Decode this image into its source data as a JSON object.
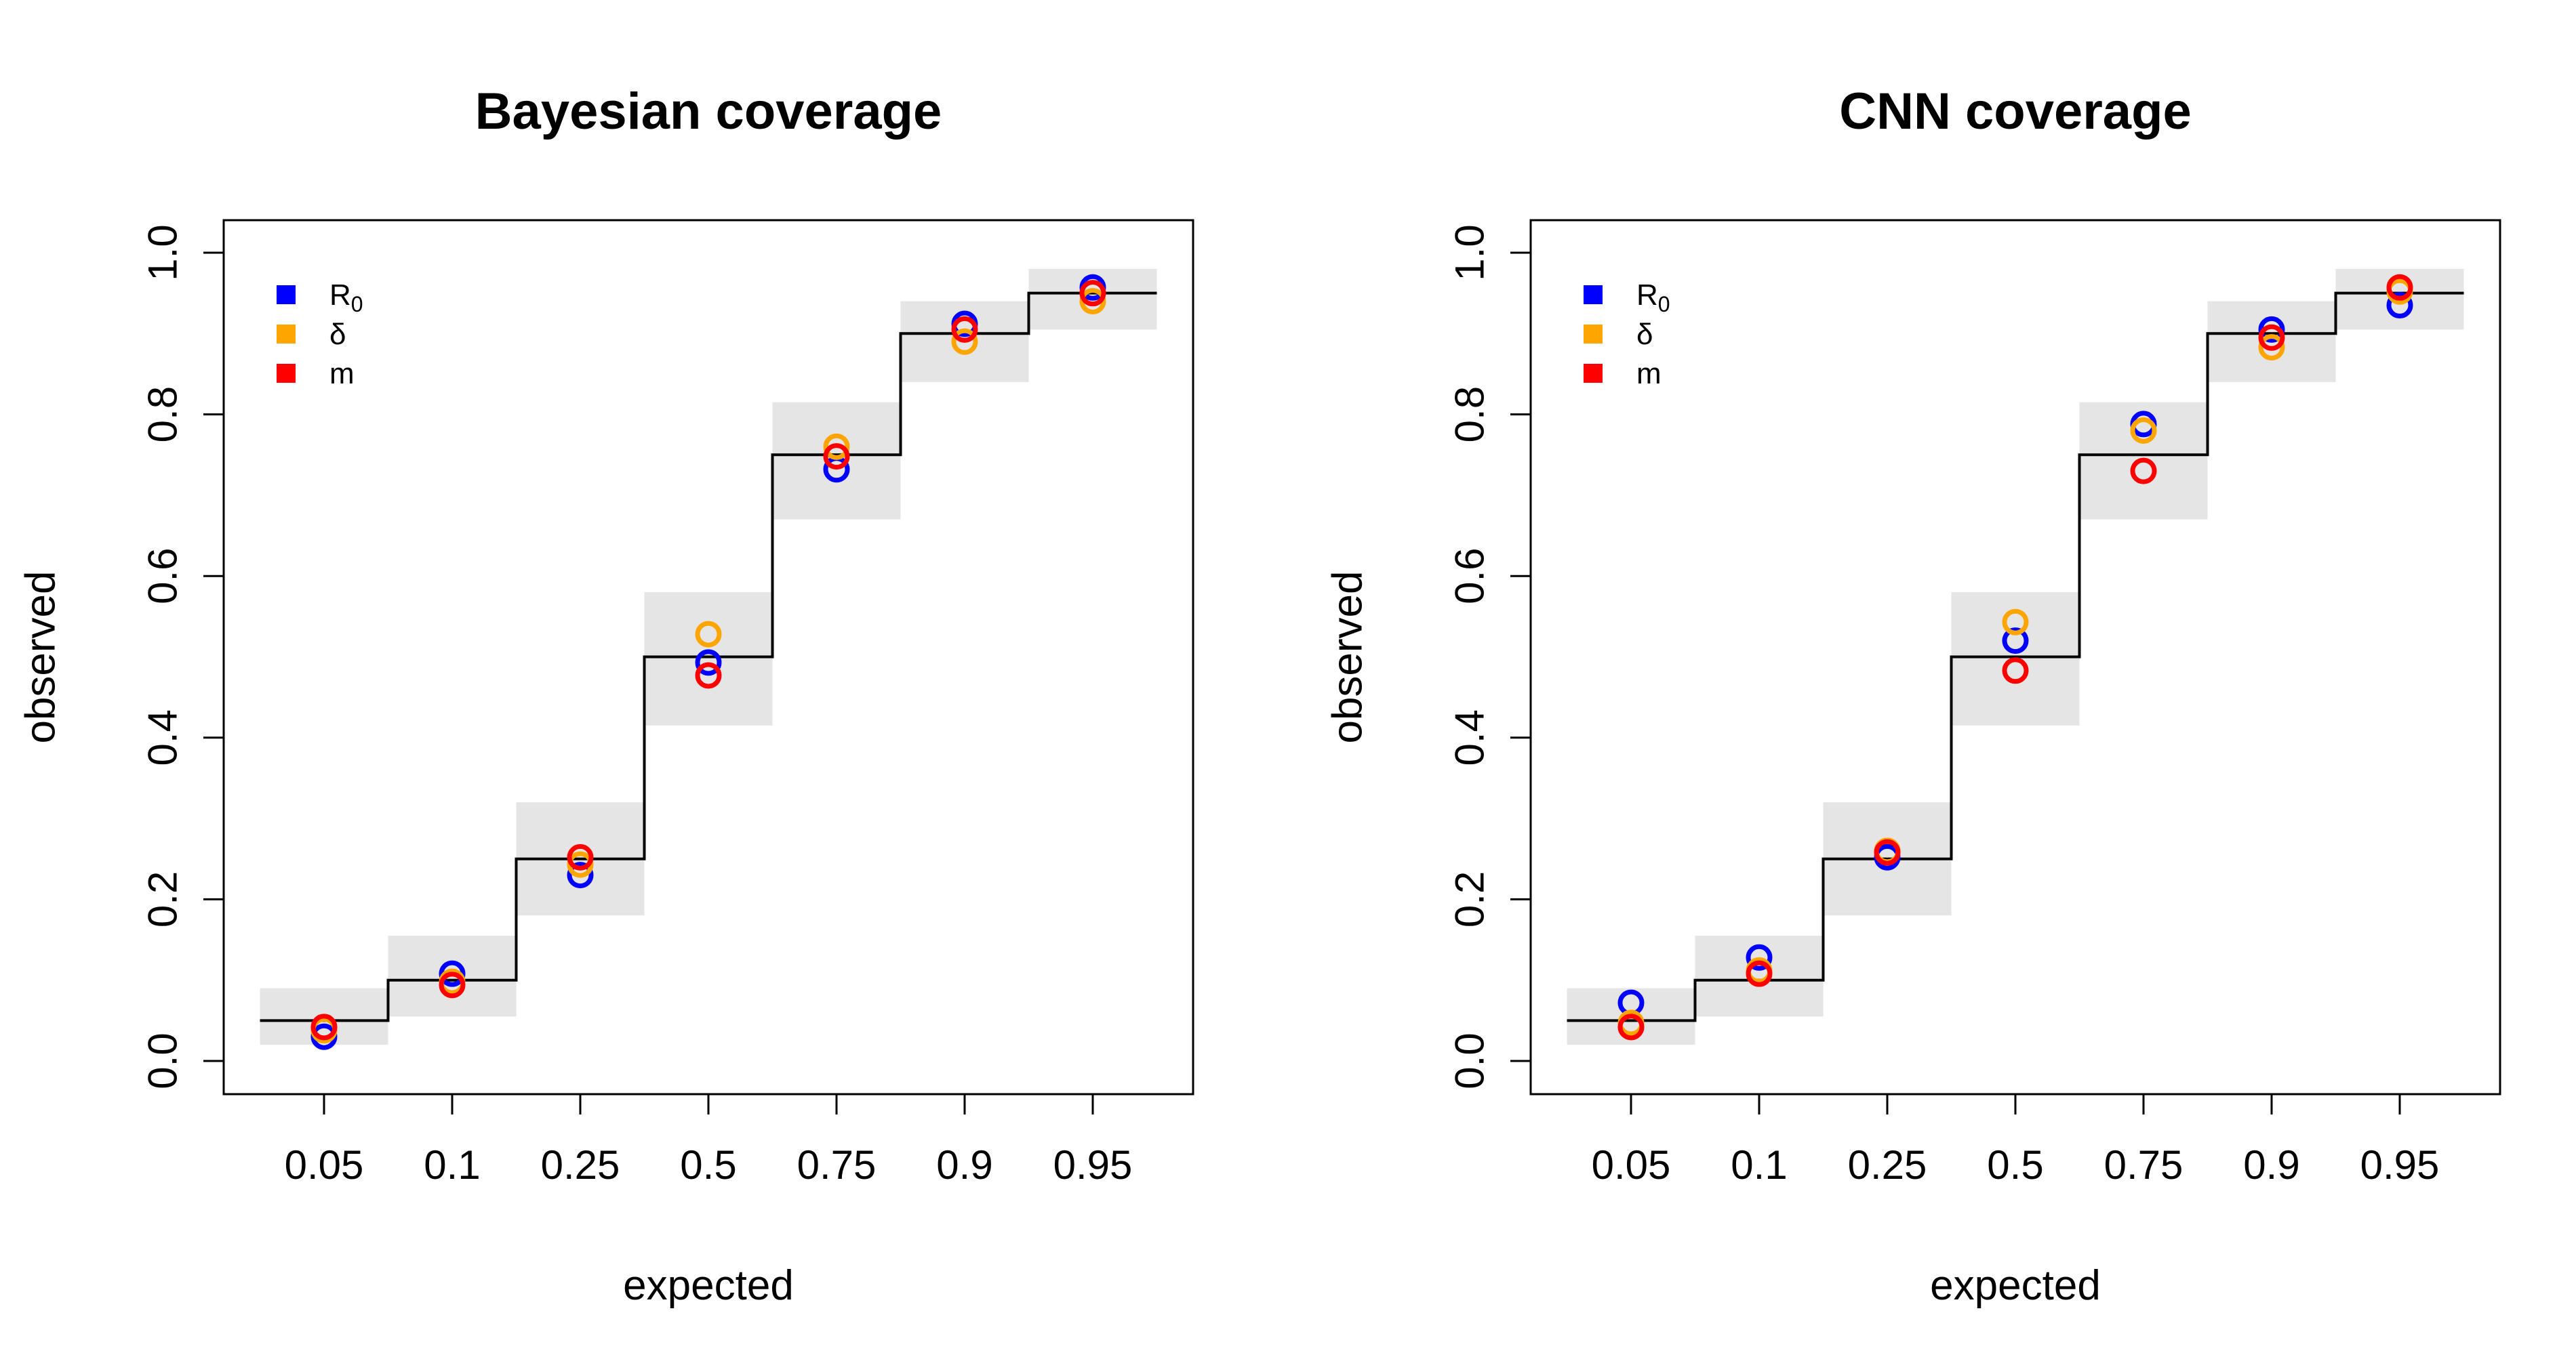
{
  "colors": {
    "R0": "#0000FF",
    "delta": "#FFA500",
    "m": "#FF0000",
    "band": "#E5E5E5",
    "line": "#000000"
  },
  "chart_data": [
    {
      "type": "scatter",
      "title": "Bayesian coverage",
      "xlabel": "expected",
      "ylabel": "observed",
      "categories": [
        "0.05",
        "0.1",
        "0.25",
        "0.5",
        "0.75",
        "0.9",
        "0.95"
      ],
      "expected": [
        0.05,
        0.1,
        0.25,
        0.5,
        0.75,
        0.9,
        0.95
      ],
      "band_low": [
        0.02,
        0.055,
        0.18,
        0.415,
        0.67,
        0.84,
        0.905
      ],
      "band_high": [
        0.09,
        0.155,
        0.32,
        0.58,
        0.815,
        0.94,
        0.98
      ],
      "ylim": [
        0,
        1
      ],
      "yticks": [
        "0.0",
        "0.2",
        "0.4",
        "0.6",
        "0.8",
        "1.0"
      ],
      "legend": {
        "position": "top-left",
        "entries": [
          {
            "key": "R0",
            "label": "R",
            "sub": "0"
          },
          {
            "key": "delta",
            "label": "δ",
            "sub": ""
          },
          {
            "key": "m",
            "label": "m",
            "sub": ""
          }
        ]
      },
      "series": [
        {
          "key": "R0",
          "values": [
            0.03,
            0.108,
            0.23,
            0.493,
            0.732,
            0.912,
            0.957
          ]
        },
        {
          "key": "delta",
          "values": [
            0.038,
            0.098,
            0.243,
            0.528,
            0.76,
            0.89,
            0.94
          ]
        },
        {
          "key": "m",
          "values": [
            0.042,
            0.094,
            0.252,
            0.477,
            0.748,
            0.905,
            0.95
          ]
        }
      ]
    },
    {
      "type": "scatter",
      "title": "CNN coverage",
      "xlabel": "expected",
      "ylabel": "observed",
      "categories": [
        "0.05",
        "0.1",
        "0.25",
        "0.5",
        "0.75",
        "0.9",
        "0.95"
      ],
      "expected": [
        0.05,
        0.1,
        0.25,
        0.5,
        0.75,
        0.9,
        0.95
      ],
      "band_low": [
        0.02,
        0.055,
        0.18,
        0.415,
        0.67,
        0.84,
        0.905
      ],
      "band_high": [
        0.09,
        0.155,
        0.32,
        0.58,
        0.815,
        0.94,
        0.98
      ],
      "ylim": [
        0,
        1
      ],
      "yticks": [
        "0.0",
        "0.2",
        "0.4",
        "0.6",
        "0.8",
        "1.0"
      ],
      "legend": {
        "position": "top-left",
        "entries": [
          {
            "key": "R0",
            "label": "R",
            "sub": "0"
          },
          {
            "key": "delta",
            "label": "δ",
            "sub": ""
          },
          {
            "key": "m",
            "label": "m",
            "sub": ""
          }
        ]
      },
      "series": [
        {
          "key": "R0",
          "values": [
            0.072,
            0.128,
            0.252,
            0.52,
            0.788,
            0.905,
            0.935
          ]
        },
        {
          "key": "delta",
          "values": [
            0.047,
            0.112,
            0.26,
            0.543,
            0.78,
            0.883,
            0.952
          ]
        },
        {
          "key": "m",
          "values": [
            0.042,
            0.108,
            0.258,
            0.483,
            0.73,
            0.895,
            0.957
          ]
        }
      ]
    }
  ]
}
